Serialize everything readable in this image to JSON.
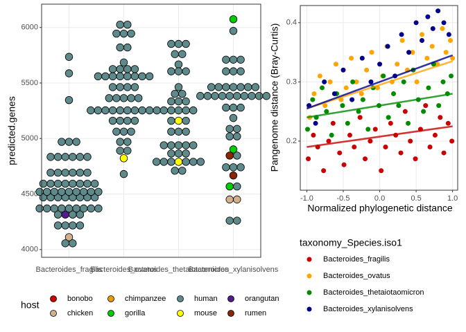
{
  "chart_data": [
    {
      "type": "dotplot",
      "ylabel": "predicted.genes",
      "categories": [
        "Bacteroides_fragilis",
        "Bacteroides_ovatus",
        "Bacteroides_thetaiotaomicron",
        "Bacteroides_xylanisolvens"
      ],
      "ylim": [
        3930,
        6210
      ],
      "yticks": [
        4000,
        4500,
        5000,
        5500,
        6000
      ],
      "grid": true,
      "legend_title": "host",
      "series": [
        {
          "name": "bonobo",
          "color": "#cc0000",
          "x": [],
          "values": []
        },
        {
          "name": "chicken",
          "color": "#d2b08c",
          "x": [
            "Bacteroides_fragilis",
            "Bacteroides_xylanisolvens",
            "Bacteroides_xylanisolvens"
          ],
          "values": [
            4111,
            4451,
            4451
          ]
        },
        {
          "name": "chimpanzee",
          "color": "#e69f00",
          "x": [],
          "values": []
        },
        {
          "name": "gorilla",
          "color": "#00cc00",
          "x": [
            "Bacteroides_xylanisolvens",
            "Bacteroides_xylanisolvens",
            "Bacteroides_xylanisolvens"
          ],
          "values": [
            6074,
            4902,
            4568
          ]
        },
        {
          "name": "human",
          "color": "#5f8a8b",
          "x": [
            "Bacteroides_fragilis",
            "Bacteroides_fragilis",
            "Bacteroides_fragilis",
            "Bacteroides_fragilis",
            "Bacteroides_fragilis",
            "Bacteroides_fragilis",
            "Bacteroides_fragilis",
            "Bacteroides_fragilis",
            "Bacteroides_fragilis",
            "Bacteroides_fragilis",
            "Bacteroides_fragilis",
            "Bacteroides_fragilis",
            "Bacteroides_fragilis",
            "Bacteroides_fragilis",
            "Bacteroides_ovatus",
            "Bacteroides_ovatus",
            "Bacteroides_ovatus",
            "Bacteroides_ovatus",
            "Bacteroides_ovatus",
            "Bacteroides_ovatus",
            "Bacteroides_ovatus",
            "Bacteroides_ovatus",
            "Bacteroides_ovatus",
            "Bacteroides_ovatus",
            "Bacteroides_ovatus",
            "Bacteroides_ovatus",
            "Bacteroides_ovatus",
            "Bacteroides_ovatus",
            "Bacteroides_thetaiotaomicron",
            "Bacteroides_thetaiotaomicron",
            "Bacteroides_thetaiotaomicron",
            "Bacteroides_thetaiotaomicron",
            "Bacteroides_thetaiotaomicron",
            "Bacteroides_thetaiotaomicron",
            "Bacteroides_thetaiotaomicron",
            "Bacteroides_thetaiotaomicron",
            "Bacteroides_thetaiotaomicron",
            "Bacteroides_thetaiotaomicron",
            "Bacteroides_thetaiotaomicron",
            "Bacteroides_thetaiotaomicron",
            "Bacteroides_thetaiotaomicron",
            "Bacteroides_thetaiotaomicron",
            "Bacteroides_xylanisolvens",
            "Bacteroides_xylanisolvens",
            "Bacteroides_xylanisolvens",
            "Bacteroides_xylanisolvens",
            "Bacteroides_xylanisolvens",
            "Bacteroides_xylanisolvens",
            "Bacteroides_xylanisolvens",
            "Bacteroides_xylanisolvens",
            "Bacteroides_xylanisolvens",
            "Bacteroides_xylanisolvens",
            "Bacteroides_xylanisolvens",
            "Bacteroides_xylanisolvens",
            "Bacteroides_xylanisolvens"
          ],
          "counts": [
            2,
            4,
            2,
            9,
            8,
            9,
            8,
            6,
            6,
            3,
            1,
            1,
            1,
            1,
            2,
            3,
            2,
            1,
            4,
            8,
            4,
            5,
            10,
            4,
            3,
            2,
            2,
            1,
            3,
            2,
            1,
            3,
            1,
            2,
            3,
            5,
            2,
            3,
            5,
            3,
            6,
            2,
            1,
            3,
            3,
            7,
            10,
            3,
            1,
            2,
            2,
            1,
            3,
            1,
            2
          ],
          "values": [
            4056,
            4217,
            4315,
            4370,
            4470,
            4520,
            4593,
            4692,
            4834,
            4970,
            5346,
            5587,
            5735,
            4315,
            6025,
            5945,
            5820,
            5685,
            5625,
            5560,
            5463,
            5364,
            5253,
            5160,
            5062,
            4970,
            4890,
            4680,
            5852,
            5760,
            5667,
            5605,
            5463,
            5402,
            5334,
            5253,
            5160,
            5062,
            4939,
            4865,
            4790,
            4710,
            5969,
            5710,
            5605,
            5463,
            5383,
            5278,
            5185,
            5087,
            5019,
            4846,
            4741,
            4568,
            4260
          ]
        },
        {
          "name": "mouse",
          "color": "#ffff00",
          "x": [
            "Bacteroides_ovatus",
            "Bacteroides_thetaiotaomicron",
            "Bacteroides_thetaiotaomicron"
          ],
          "values": [
            4822,
            5160,
            4790
          ]
        },
        {
          "name": "orangutan",
          "color": "#551a8b",
          "x": [
            "Bacteroides_fragilis"
          ],
          "values": [
            4315
          ]
        },
        {
          "name": "rumen",
          "color": "#8b2500",
          "x": [
            "Bacteroides_xylanisolvens",
            "Bacteroides_xylanisolvens"
          ],
          "values": [
            4846,
            4667
          ]
        }
      ]
    },
    {
      "type": "scatter",
      "xlabel": "Normalized phylogenetic distance",
      "ylabel": "Pangenome distance (Bray-Curtis)",
      "xlim": [
        -1.09,
        1.07
      ],
      "ylim": [
        0.117,
        0.429
      ],
      "xticks": [
        {
          "value": -1.0,
          "label": "-1.0"
        },
        -0.5,
        {
          "value": 0.0,
          "label": "0.0"
        },
        0.5,
        {
          "value": 1.0,
          "label": "1.0"
        }
      ],
      "yticks": [
        0.2,
        0.3,
        0.4
      ],
      "grid": true,
      "legend_title": "taxonomy_Species.iso1",
      "series": [
        {
          "name": "Bacteroides_fragilis",
          "color": "#cc0000",
          "x": [
            -0.98,
            -0.91,
            -0.85,
            -0.77,
            -0.7,
            -0.64,
            -0.55,
            -0.49,
            -0.41,
            -0.35,
            -0.27,
            -0.2,
            -0.13,
            -0.06,
            0.02,
            0.08,
            0.15,
            0.22,
            0.29,
            0.35,
            0.42,
            0.49,
            0.56,
            0.63,
            0.69,
            0.76,
            0.83,
            0.88,
            0.94,
            0.99
          ],
          "values": [
            0.17,
            0.21,
            0.19,
            0.15,
            0.2,
            0.23,
            0.18,
            0.16,
            0.21,
            0.19,
            0.24,
            0.17,
            0.2,
            0.22,
            0.15,
            0.19,
            0.23,
            0.21,
            0.18,
            0.25,
            0.2,
            0.17,
            0.22,
            0.26,
            0.19,
            0.21,
            0.24,
            0.18,
            0.23,
            0.2
          ],
          "trend": {
            "x": [
              -1,
              1
            ],
            "values": [
              0.19,
              0.225
            ]
          }
        },
        {
          "name": "Bacteroides_ovatus",
          "color": "#ffa500",
          "x": [
            -0.96,
            -0.9,
            -0.82,
            -0.75,
            -0.68,
            -0.6,
            -0.53,
            -0.46,
            -0.39,
            -0.32,
            -0.25,
            -0.18,
            -0.11,
            -0.03,
            0.04,
            0.1,
            0.17,
            0.24,
            0.31,
            0.38,
            0.45,
            0.51,
            0.58,
            0.65,
            0.72,
            0.79,
            0.86,
            0.91,
            0.97,
            1.0
          ],
          "values": [
            0.24,
            0.28,
            0.31,
            0.26,
            0.3,
            0.33,
            0.27,
            0.29,
            0.34,
            0.3,
            0.28,
            0.32,
            0.35,
            0.29,
            0.31,
            0.36,
            0.3,
            0.33,
            0.37,
            0.32,
            0.35,
            0.3,
            0.38,
            0.34,
            0.36,
            0.33,
            0.39,
            0.35,
            0.37,
            0.34
          ],
          "trend": {
            "x": [
              -1,
              1
            ],
            "values": [
              0.255,
              0.335
            ]
          }
        },
        {
          "name": "Bacteroides_thetaiotaomicron",
          "color": "#008b00",
          "x": [
            -0.99,
            -0.92,
            -0.87,
            -0.79,
            -0.73,
            -0.66,
            -0.59,
            -0.51,
            -0.44,
            -0.37,
            -0.29,
            -0.23,
            -0.16,
            -0.09,
            -0.01,
            0.05,
            0.12,
            0.19,
            0.26,
            0.33,
            0.39,
            0.46,
            0.53,
            0.6,
            0.67,
            0.74,
            0.81,
            0.87,
            0.93,
            0.98
          ],
          "values": [
            0.22,
            0.27,
            0.24,
            0.29,
            0.25,
            0.21,
            0.28,
            0.26,
            0.23,
            0.3,
            0.25,
            0.27,
            0.22,
            0.29,
            0.26,
            0.31,
            0.24,
            0.28,
            0.26,
            0.3,
            0.23,
            0.32,
            0.27,
            0.25,
            0.29,
            0.33,
            0.26,
            0.3,
            0.28,
            0.31
          ],
          "trend": {
            "x": [
              -1,
              1
            ],
            "values": [
              0.24,
              0.28
            ]
          }
        },
        {
          "name": "Bacteroides_xylanisolvens",
          "color": "#00008b",
          "x": [
            -0.97,
            -0.88,
            -0.76,
            -0.62,
            -0.5,
            -0.38,
            -0.24,
            -0.12,
            0.0,
            0.11,
            0.21,
            0.3,
            0.4,
            0.5,
            0.58,
            0.66,
            0.73,
            0.8,
            0.88,
            0.95
          ],
          "values": [
            0.26,
            0.23,
            0.3,
            0.28,
            0.32,
            0.27,
            0.34,
            0.3,
            0.33,
            0.36,
            0.31,
            0.38,
            0.35,
            0.4,
            0.37,
            0.41,
            0.39,
            0.42,
            0.4,
            0.38
          ],
          "trend": {
            "x": [
              -1,
              1
            ],
            "values": [
              0.255,
              0.345
            ]
          }
        }
      ]
    }
  ]
}
